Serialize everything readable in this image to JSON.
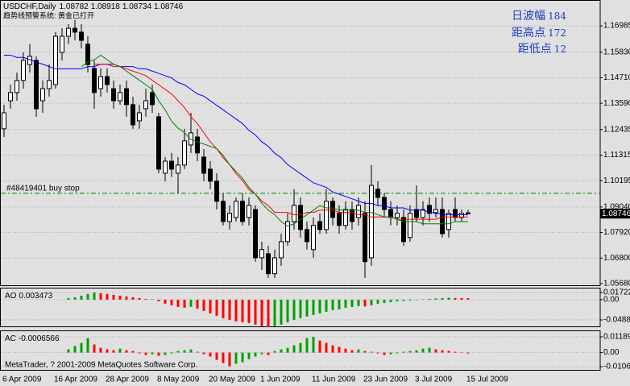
{
  "chart_data": [
    {
      "type": "candlestick",
      "title": "USDCHF,Daily",
      "subtitle": "趋势线预警系统: 黄金已打开",
      "categories": [
        "6 Apr 2009",
        null,
        null,
        null,
        null,
        null,
        null,
        null,
        "16 Apr 2009",
        null,
        null,
        null,
        null,
        null,
        null,
        null,
        "28 Apr 2009",
        null,
        null,
        null,
        null,
        null,
        null,
        null,
        "8 May 2009",
        null,
        null,
        null,
        null,
        null,
        null,
        null,
        "20 May 2009",
        null,
        null,
        null,
        null,
        null,
        null,
        null,
        "1 Jun 2009",
        null,
        null,
        null,
        null,
        null,
        null,
        null,
        "11 Jun 2009",
        null,
        null,
        null,
        null,
        null,
        null,
        null,
        "23 Jun 2009",
        null,
        null,
        null,
        null,
        null,
        null,
        null,
        "3 Jul 2009",
        null,
        null,
        null,
        null,
        null,
        null,
        null,
        "15 Jul 2009"
      ],
      "open": [
        1.1247,
        1.137,
        1.1406,
        1.1459,
        1.1529,
        1.1547,
        1.137,
        1.1423,
        1.1441,
        1.1582,
        1.1653,
        1.1688,
        1.1671,
        1.1618,
        1.1512,
        1.1423,
        1.1476,
        1.1423,
        1.137,
        1.1423,
        1.1353,
        1.1282,
        1.1335,
        1.1406,
        1.13,
        1.1052,
        1.1105,
        1.1052,
        1.1088,
        1.1176,
        1.1211,
        1.1123,
        1.107,
        1.1017,
        1.0929,
        1.084,
        1.0858,
        1.0929,
        1.0858,
        1.0893,
        1.0681,
        1.0699,
        1.0611,
        1.0681,
        1.0752,
        1.084,
        1.0911,
        1.0805,
        1.0717,
        1.084,
        1.0805,
        1.0929,
        1.0876,
        1.0823,
        1.0893,
        1.0858,
        1.0876,
        1.0681,
        1.0982,
        1.0946,
        1.0893,
        1.0858,
        1.0858,
        1.077,
        1.0893,
        1.0858,
        1.0911,
        1.0876,
        1.0893,
        1.0805,
        1.0893,
        1.0858,
        1.08782
      ],
      "high": [
        1.1353,
        1.1441,
        1.1494,
        1.1582,
        1.1618,
        1.1565,
        1.1459,
        1.1529,
        1.1671,
        1.1688,
        1.1706,
        1.1724,
        1.1706,
        1.1653,
        1.1547,
        1.1512,
        1.1512,
        1.1459,
        1.1441,
        1.1459,
        1.1388,
        1.1353,
        1.1423,
        1.1441,
        1.1317,
        1.1123,
        1.1141,
        1.1123,
        1.1247,
        1.1317,
        1.1247,
        1.1158,
        1.1105,
        1.1052,
        1.0964,
        1.0911,
        1.0946,
        1.0964,
        1.0946,
        1.0911,
        1.0752,
        1.0734,
        1.0717,
        1.0787,
        1.0876,
        1.0982,
        1.0946,
        1.084,
        1.0858,
        1.0876,
        1.0982,
        1.0946,
        1.0911,
        1.0929,
        1.0929,
        1.0946,
        1.0929,
        1.1088,
        1.1017,
        1.0964,
        1.0929,
        1.0911,
        1.0893,
        1.0911,
        1.0999,
        1.0929,
        1.0946,
        1.0946,
        1.0946,
        1.0893,
        1.0946,
        1.0893,
        1.08918
      ],
      "low": [
        1.1211,
        1.1335,
        1.137,
        1.1423,
        1.1494,
        1.13,
        1.1317,
        1.1388,
        1.1423,
        1.1547,
        1.1618,
        1.1635,
        1.16,
        1.1494,
        1.1335,
        1.1388,
        1.1406,
        1.1335,
        1.1353,
        1.13,
        1.1247,
        1.1247,
        1.13,
        1.1317,
        1.1052,
        1.1017,
        1.1035,
        1.0964,
        1.107,
        1.1141,
        1.1105,
        1.1017,
        1.0982,
        1.0893,
        1.0823,
        1.0805,
        1.084,
        1.0823,
        1.0823,
        1.0664,
        1.0628,
        1.0593,
        1.0593,
        1.0646,
        1.0734,
        1.0805,
        1.077,
        1.0717,
        1.0681,
        1.0787,
        1.0787,
        1.0823,
        1.0787,
        1.0805,
        1.0805,
        1.0823,
        1.0593,
        1.0646,
        1.0911,
        1.0858,
        1.0823,
        1.0823,
        1.0734,
        1.0752,
        1.084,
        1.0823,
        1.084,
        1.0858,
        1.077,
        1.077,
        1.084,
        1.084,
        1.08734
      ],
      "close": [
        1.1317,
        1.1406,
        1.1459,
        1.1547,
        1.1565,
        1.1335,
        1.1423,
        1.1459,
        1.1653,
        1.1653,
        1.1688,
        1.1671,
        1.1635,
        1.1529,
        1.1406,
        1.1476,
        1.1441,
        1.137,
        1.1406,
        1.1353,
        1.1264,
        1.1317,
        1.137,
        1.1353,
        1.107,
        1.1105,
        1.107,
        1.1088,
        1.1194,
        1.1229,
        1.1141,
        1.1052,
        1.1017,
        1.0929,
        1.084,
        1.0876,
        1.0929,
        1.084,
        1.0911,
        1.0681,
        1.0717,
        1.0611,
        1.0681,
        1.0752,
        1.084,
        1.0911,
        1.0805,
        1.0752,
        1.0823,
        1.0805,
        1.0929,
        1.0858,
        1.0823,
        1.0893,
        1.084,
        1.0911,
        1.0664,
        1.0999,
        1.0946,
        1.0893,
        1.0858,
        1.0876,
        1.0752,
        1.0876,
        1.0858,
        1.0893,
        1.0876,
        1.0893,
        1.0787,
        1.0876,
        1.0858,
        1.0876,
        1.08746
      ],
      "up_color": "#ffffff",
      "down_color": "#000000",
      "series": [
        {
          "color": "#0000ff",
          "values": [
            1.157,
            1.157,
            1.156,
            1.156,
            1.155,
            1.154,
            1.153,
            1.152,
            1.151,
            1.151,
            1.151,
            1.151,
            1.151,
            1.152,
            1.152,
            1.153,
            1.153,
            1.153,
            1.152,
            1.152,
            1.152,
            1.151,
            1.151,
            1.15,
            1.149,
            1.148,
            1.147,
            1.145,
            1.144,
            1.142,
            1.14,
            1.139,
            1.137,
            1.135,
            1.133,
            1.131,
            1.129,
            1.127,
            1.124,
            1.122,
            1.119,
            1.117,
            1.114,
            1.112,
            1.109,
            1.107,
            1.105,
            1.103,
            1.101,
            1.1,
            1.099,
            1.097,
            1.096,
            1.095,
            1.094,
            1.093,
            1.092,
            1.092,
            1.091,
            1.091,
            1.09,
            1.09,
            1.09,
            1.089,
            1.089,
            1.089,
            1.088,
            1.088,
            1.087,
            1.087,
            1.087,
            1.087,
            1.087
          ]
        },
        {
          "color": "#ff0000",
          "values": [
            null,
            null,
            null,
            null,
            null,
            null,
            null,
            null,
            null,
            null,
            null,
            null,
            null,
            null,
            1.153,
            1.153,
            1.153,
            1.152,
            1.152,
            1.151,
            1.15,
            1.149,
            1.148,
            1.146,
            1.144,
            1.142,
            1.14,
            1.137,
            1.134,
            1.13,
            1.127,
            1.123,
            1.119,
            1.116,
            1.112,
            1.109,
            1.105,
            1.102,
            1.098,
            1.096,
            1.093,
            1.091,
            1.088,
            1.088,
            1.088,
            1.087,
            1.087,
            1.088,
            1.088,
            1.089,
            1.089,
            1.089,
            1.088,
            1.088,
            1.088,
            1.087,
            1.087,
            1.086,
            1.086,
            1.086,
            1.086,
            1.085,
            1.085,
            1.085,
            1.085,
            1.085,
            1.085,
            1.085,
            1.086,
            1.086,
            1.086,
            1.086,
            1.086
          ]
        },
        {
          "color": "#008000",
          "values": [
            null,
            null,
            null,
            null,
            null,
            null,
            null,
            null,
            null,
            null,
            null,
            null,
            1.152,
            1.154,
            1.155,
            1.157,
            1.155,
            1.153,
            1.152,
            1.15,
            1.148,
            1.146,
            1.144,
            1.142,
            1.137,
            1.133,
            1.128,
            1.125,
            1.123,
            1.12,
            1.119,
            1.118,
            1.117,
            1.116,
            1.113,
            1.109,
            1.106,
            1.103,
            1.099,
            1.096,
            1.092,
            1.089,
            1.087,
            1.084,
            1.082,
            1.083,
            1.085,
            1.087,
            1.089,
            1.091,
            1.09,
            1.09,
            1.089,
            1.089,
            1.089,
            1.089,
            1.088,
            1.088,
            1.087,
            1.086,
            1.086,
            1.085,
            1.084,
            1.084,
            1.084,
            1.083,
            1.083,
            1.083,
            1.083,
            1.083,
            1.084,
            1.084,
            1.084
          ]
        }
      ],
      "ylim": [
        1.0557,
        1.1812
      ],
      "yticks": [
        1.16985,
        {
          "value": 1.1583,
          "label": "1.15830"
        },
        {
          "value": 1.1471,
          "label": "1.14710"
        },
        {
          "value": 1.1359,
          "label": "1.13590"
        },
        1.12435,
        1.11315,
        1.10195,
        {
          "value": 1.0904,
          "label": "1.09040"
        },
        {
          "value": 1.0792,
          "label": "1.07920"
        },
        {
          "value": 1.068,
          "label": "1.06800"
        },
        {
          "value": 1.0568,
          "label": "1.05680"
        }
      ],
      "grid": true,
      "levels": [
        {
          "label": "#48419401 buy stop",
          "value": 1.0964,
          "color": "#008000"
        }
      ],
      "info": [
        {
          "label": "日波幅",
          "value": 184
        },
        {
          "label": "距高点",
          "value": 172
        },
        {
          "label": "距低点",
          "value": 12
        }
      ]
    },
    {
      "type": "bar",
      "title": "AO",
      "up_color": "#00a000",
      "down_color": "#ff0000",
      "values": [
        null,
        null,
        null,
        null,
        null,
        null,
        null,
        null,
        null,
        null,
        0.0039,
        0.0058,
        0.0097,
        0.0136,
        0.0172,
        0.0155,
        0.0136,
        0.0116,
        0.0097,
        0.0078,
        0.0058,
        0.0039,
        0.0019,
        0.001,
        -0.0039,
        -0.0097,
        -0.0136,
        -0.0175,
        -0.0194,
        -0.0175,
        -0.0213,
        -0.0272,
        -0.033,
        -0.0388,
        -0.0446,
        -0.0485,
        -0.0524,
        -0.0543,
        -0.0563,
        -0.0602,
        -0.064,
        -0.066,
        -0.064,
        -0.0602,
        -0.0543,
        -0.0485,
        -0.0446,
        -0.0407,
        -0.0369,
        -0.033,
        -0.0291,
        -0.0252,
        -0.0233,
        -0.0194,
        -0.0175,
        -0.0155,
        -0.0165,
        -0.0136,
        -0.0097,
        -0.0078,
        -0.0058,
        -0.0039,
        -0.0029,
        -0.0019,
        -0.001,
        0.001,
        0.0019,
        0.0029,
        0.0039,
        0.0049,
        0.0039,
        0.0039,
        0.003473
      ],
      "ylim": [
        -0.0663,
        0.0289
      ],
      "yticks": [
        0.01722,
        {
          "value": 0,
          "label": "0.00"
        },
        -0.04882
      ],
      "grid": true
    },
    {
      "type": "bar",
      "title": "AC",
      "up_color": "#00a000",
      "down_color": "#ff0000",
      "values": [
        null,
        null,
        null,
        null,
        null,
        null,
        null,
        null,
        null,
        null,
        0.0024,
        0.0049,
        0.0073,
        0.0109,
        0.0061,
        0.0036,
        0.0024,
        0.0018,
        0.003,
        0.0018,
        0.0012,
        -0.0006,
        -0.0018,
        -0.0012,
        -0.0024,
        -0.0018,
        -0.0006,
        0.0012,
        0.0018,
        0.0024,
        0.0006,
        -0.0012,
        -0.003,
        -0.0055,
        -0.0079,
        -0.0103,
        -0.0085,
        -0.0073,
        -0.0049,
        -0.003,
        -0.0012,
        -0.0018,
        0.0012,
        0.0024,
        0.0036,
        0.0055,
        0.0073,
        0.0109,
        0.01189,
        0.0091,
        0.0073,
        0.0055,
        0.0043,
        0.003,
        0.0018,
        0.0024,
        0.0012,
        0.0006,
        -0.0006,
        -0.0018,
        -0.0012,
        -0.0006,
        0.0006,
        0.0012,
        0.0018,
        0.003,
        0.0036,
        0.0024,
        0.0018,
        0.0012,
        0.0006,
        0,
        -0.0006566
      ],
      "ylim": [
        -0.01364,
        0.01675
      ],
      "yticks": [
        0.01189,
        {
          "value": 0,
          "label": "0.00"
        },
        {
          "value": -0.0106,
          "label": "-0.01060"
        }
      ],
      "grid": true,
      "annotation": "MetaTrader, ? 2001-2009 MetaQuotes Software Corp."
    }
  ]
}
